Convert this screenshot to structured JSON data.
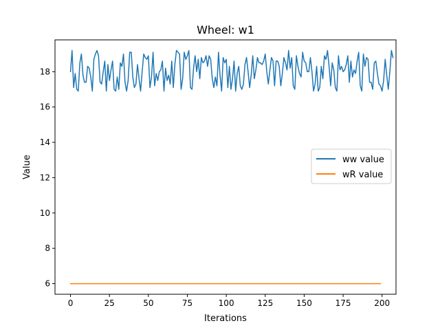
{
  "chart_data": {
    "type": "line",
    "title": "Wheel: w1",
    "xlabel": "Iterations",
    "ylabel": "Value",
    "xlim": [
      -9.95,
      208.95
    ],
    "ylim": [
      5.4,
      19.8
    ],
    "xticks": [
      0,
      25,
      50,
      75,
      100,
      125,
      150,
      175,
      200
    ],
    "yticks": [
      6,
      8,
      10,
      12,
      14,
      16,
      18
    ],
    "grid": false,
    "legend_position": "center-right",
    "series": [
      {
        "name": "ww value",
        "color": "#1f77b4",
        "x_start": 0,
        "x_step": 1,
        "values": [
          18.0,
          19.2,
          17.1,
          17.9,
          17.0,
          16.9,
          18.5,
          19.0,
          17.8,
          17.4,
          17.4,
          18.3,
          18.2,
          17.7,
          16.9,
          18.7,
          19.0,
          19.2,
          18.9,
          17.4,
          17.3,
          18.0,
          18.6,
          16.9,
          18.4,
          17.5,
          18.1,
          18.6,
          17.0,
          16.9,
          17.7,
          17.0,
          18.5,
          18.3,
          19.0,
          17.4,
          16.9,
          17.5,
          19.1,
          19.1,
          17.7,
          17.1,
          17.3,
          18.4,
          17.6,
          16.9,
          18.0,
          19.0,
          18.8,
          18.7,
          18.9,
          17.1,
          17.7,
          19.1,
          17.2,
          17.9,
          17.5,
          18.0,
          18.1,
          18.6,
          16.9,
          18.2,
          17.5,
          17.8,
          17.3,
          18.6,
          17.1,
          18.4,
          19.2,
          19.1,
          19.0,
          17.0,
          17.6,
          19.1,
          18.7,
          18.9,
          19.2,
          17.1,
          17.0,
          18.2,
          18.9,
          18.0,
          18.7,
          17.6,
          18.8,
          18.5,
          18.6,
          18.9,
          18.3,
          18.9,
          18.7,
          17.6,
          17.1,
          17.7,
          17.2,
          19.1,
          17.8,
          16.9,
          18.8,
          18.5,
          18.7,
          17.1,
          18.3,
          17.0,
          17.6,
          18.6,
          16.9,
          17.9,
          18.3,
          17.2,
          17.0,
          17.3,
          18.4,
          18.8,
          18.0,
          17.1,
          17.8,
          18.9,
          17.6,
          18.1,
          18.8,
          18.5,
          18.5,
          18.4,
          18.6,
          19.0,
          18.0,
          17.3,
          18.1,
          18.8,
          18.6,
          17.2,
          18.6,
          18.6,
          18.3,
          17.2,
          17.9,
          18.8,
          18.5,
          18.1,
          19.2,
          18.2,
          18.8,
          17.2,
          17.0,
          18.9,
          18.3,
          17.9,
          17.7,
          19.1,
          18.6,
          18.5,
          18.0,
          18.0,
          18.8,
          18.0,
          16.9,
          17.3,
          18.3,
          16.9,
          17.1,
          18.3,
          17.6,
          18.9,
          18.7,
          19.2,
          18.3,
          17.2,
          18.5,
          18.1,
          17.1,
          16.9,
          18.9,
          18.1,
          18.3,
          18.0,
          18.1,
          18.4,
          18.9,
          17.4,
          18.6,
          17.7,
          18.1,
          17.9,
          18.6,
          19.1,
          17.2,
          16.9,
          19.0,
          18.3,
          18.8,
          18.7,
          17.4,
          17.4,
          17.0,
          18.5,
          18.6,
          17.9,
          17.3,
          17.2,
          16.9,
          17.5,
          18.7,
          17.8,
          17.0,
          18.0,
          19.2,
          18.8
        ]
      },
      {
        "name": "wR value",
        "color": "#ff7f0e",
        "x": [
          0,
          199
        ],
        "values": [
          6.0,
          6.0
        ]
      }
    ]
  }
}
